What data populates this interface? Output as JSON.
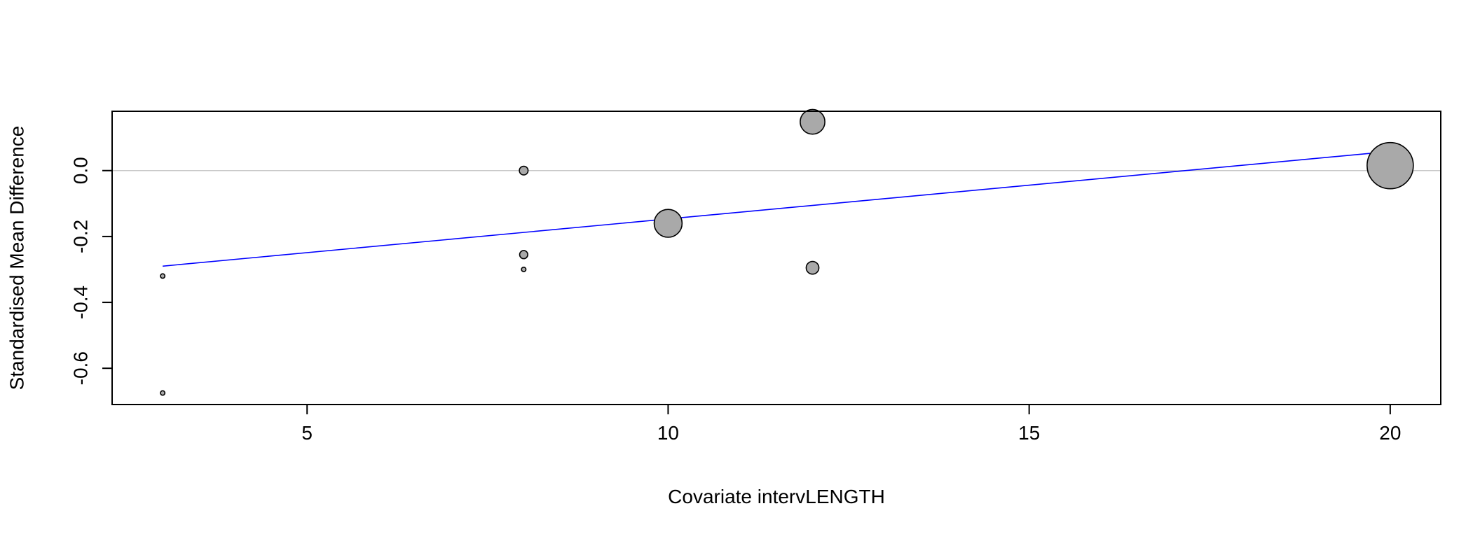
{
  "chart_data": {
    "type": "scatter",
    "xlabel": "Covariate intervLENGTH",
    "ylabel": "Standardised Mean Difference",
    "xlim": [
      2.3,
      20.7
    ],
    "ylim": [
      -0.71,
      0.18
    ],
    "x_ticks": [
      5,
      10,
      15,
      20
    ],
    "x_tick_labels": [
      "5",
      "10",
      "15",
      "20"
    ],
    "y_ticks": [
      -0.6,
      -0.4,
      -0.2,
      0.0
    ],
    "y_tick_labels": [
      "-0.6",
      "-0.4",
      "-0.2",
      "0.0"
    ],
    "reference_line_y": 0.0,
    "grid": false,
    "points": [
      {
        "x": 3,
        "y": -0.32,
        "weight": 0.02
      },
      {
        "x": 3,
        "y": -0.675,
        "weight": 0.01
      },
      {
        "x": 8,
        "y": 0.0,
        "weight": 0.08
      },
      {
        "x": 8,
        "y": -0.255,
        "weight": 0.07
      },
      {
        "x": 8,
        "y": -0.3,
        "weight": 0.01
      },
      {
        "x": 10,
        "y": -0.16,
        "weight": 0.82
      },
      {
        "x": 12,
        "y": 0.148,
        "weight": 0.64
      },
      {
        "x": 12,
        "y": -0.295,
        "weight": 0.17
      },
      {
        "x": 20,
        "y": 0.015,
        "weight": 2.25
      }
    ],
    "regression_line": {
      "x": [
        3,
        20
      ],
      "y": [
        -0.29,
        0.058
      ],
      "color": "#0000ff"
    },
    "colors": {
      "point_fill": "#a9a9a9",
      "point_stroke": "#000000",
      "reference_line": "#c8c8c8",
      "axis": "#000000"
    }
  }
}
